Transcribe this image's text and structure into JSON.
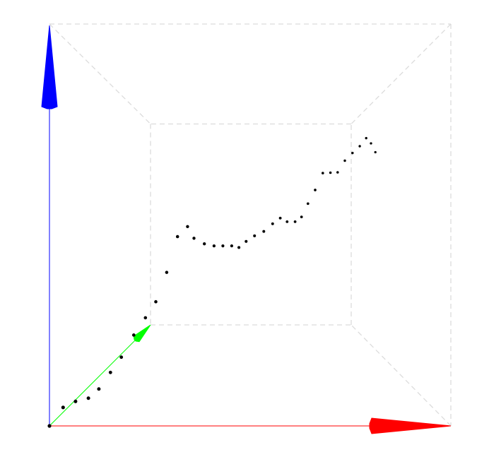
{
  "chart_data": {
    "type": "scatter",
    "projection": "3d-perspective",
    "title": "",
    "xlabel": "",
    "ylabel": "",
    "zlabel": "",
    "grid": false,
    "box": "dashed",
    "axes_colors": {
      "x": "#ff0000",
      "y": "#00ff00",
      "z": "#0000ff"
    },
    "point_color": "#000000",
    "box_color": "#dcdcdc",
    "points": [
      [
        0.0,
        0.0,
        0.0
      ],
      [
        0.034,
        0.0,
        0.046
      ],
      [
        0.065,
        0.0,
        0.061
      ],
      [
        0.097,
        0.0,
        0.069
      ],
      [
        0.123,
        0.0,
        0.092
      ],
      [
        0.152,
        0.0,
        0.133
      ],
      [
        0.179,
        0.0,
        0.171
      ],
      [
        0.21,
        0.0,
        0.226
      ],
      [
        0.239,
        0.0,
        0.269
      ],
      [
        0.265,
        0.0,
        0.309
      ],
      [
        0.292,
        0.0,
        0.382
      ],
      [
        0.319,
        0.0,
        0.471
      ],
      [
        0.344,
        0.0,
        0.496
      ],
      [
        0.36,
        0.0,
        0.467
      ],
      [
        0.386,
        0.0,
        0.453
      ],
      [
        0.41,
        0.0,
        0.448
      ],
      [
        0.432,
        0.0,
        0.448
      ],
      [
        0.454,
        0.0,
        0.448
      ],
      [
        0.472,
        0.0,
        0.444
      ],
      [
        0.49,
        0.0,
        0.459
      ],
      [
        0.511,
        0.0,
        0.473
      ],
      [
        0.534,
        0.0,
        0.484
      ],
      [
        0.556,
        0.0,
        0.503
      ],
      [
        0.575,
        0.0,
        0.517
      ],
      [
        0.592,
        0.0,
        0.508
      ],
      [
        0.612,
        0.0,
        0.508
      ],
      [
        0.628,
        0.0,
        0.52
      ],
      [
        0.644,
        0.0,
        0.553
      ],
      [
        0.662,
        0.0,
        0.587
      ],
      [
        0.681,
        0.0,
        0.629
      ],
      [
        0.7,
        0.0,
        0.63
      ],
      [
        0.718,
        0.0,
        0.631
      ],
      [
        0.736,
        0.0,
        0.66
      ],
      [
        0.755,
        0.0,
        0.679
      ],
      [
        0.773,
        0.0,
        0.696
      ],
      [
        0.789,
        0.0,
        0.716
      ],
      [
        0.801,
        0.0,
        0.703
      ],
      [
        0.812,
        0.0,
        0.681
      ]
    ]
  }
}
